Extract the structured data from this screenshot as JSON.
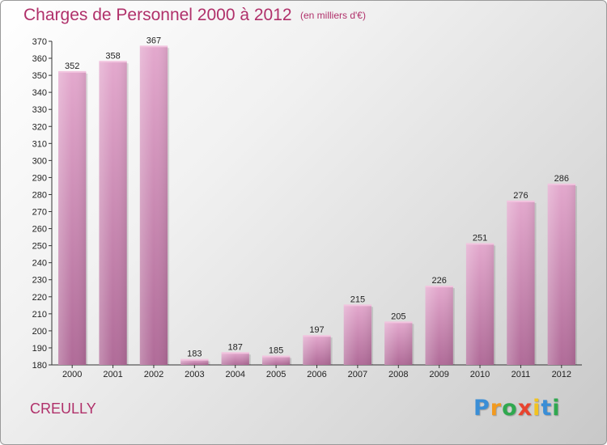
{
  "chart_data": {
    "type": "bar",
    "title": "Charges de Personnel 2000 à 2012",
    "subtitle": "(en milliers d'€)",
    "categories": [
      "2000",
      "2001",
      "2002",
      "2003",
      "2004",
      "2005",
      "2006",
      "2007",
      "2008",
      "2009",
      "2010",
      "2011",
      "2012"
    ],
    "values": [
      352,
      358,
      367,
      183,
      187,
      185,
      197,
      215,
      205,
      226,
      251,
      276,
      286
    ],
    "ylim": [
      180,
      370
    ],
    "ytick_step": 10,
    "xlabel": "",
    "ylabel": "",
    "grid": false,
    "bar_color": "#d98fbd",
    "bar_color_dark": "#b46a98"
  },
  "footer": {
    "commune": "CREULLY"
  },
  "logo": {
    "letters": [
      "P",
      "r",
      "o",
      "x",
      "i",
      "t",
      "i"
    ],
    "colors": [
      "#3a8ed6",
      "#f29a1f",
      "#2fa84f",
      "#e8432e",
      "#f2c31f",
      "#3a8ed6",
      "#2fa84f"
    ]
  }
}
